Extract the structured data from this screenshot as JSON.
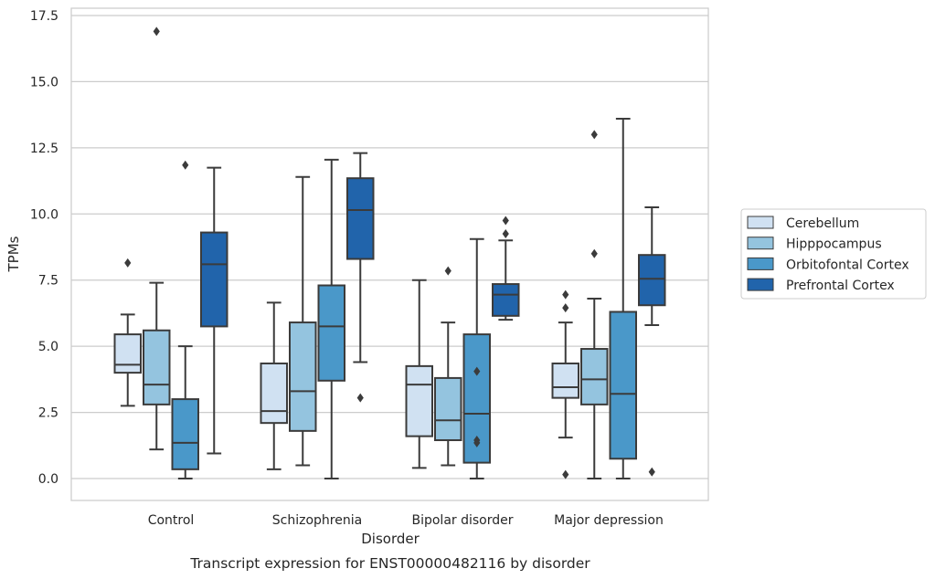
{
  "chart_data": {
    "type": "box",
    "xlabel": "Disorder",
    "ylabel": "TPMs",
    "caption": "Transcript expression for ENST00000482116 by disorder",
    "ylim": [
      -0.8,
      17.8
    ],
    "yticks": [
      "0.0",
      "2.5",
      "5.0",
      "7.5",
      "10.0",
      "12.5",
      "15.0",
      "17.5"
    ],
    "grid": "horizontal",
    "legend_position": "right",
    "categories": [
      "Control",
      "Schizophrenia",
      "Bipolar disorder",
      "Major depression"
    ],
    "series": [
      {
        "name": "Cerebellum",
        "color": "#d0e1f2",
        "boxes": [
          {
            "whislo": 2.75,
            "q1": 4.0,
            "med": 4.3,
            "q3": 5.45,
            "whishi": 6.2,
            "fliers": [
              8.15
            ]
          },
          {
            "whislo": 0.35,
            "q1": 2.1,
            "med": 2.55,
            "q3": 4.35,
            "whishi": 6.65,
            "fliers": []
          },
          {
            "whislo": 0.4,
            "q1": 1.6,
            "med": 3.55,
            "q3": 4.25,
            "whishi": 7.5,
            "fliers": []
          },
          {
            "whislo": 1.55,
            "q1": 3.05,
            "med": 3.45,
            "q3": 4.35,
            "whishi": 5.9,
            "fliers": [
              6.45,
              6.95,
              0.15
            ]
          }
        ]
      },
      {
        "name": "Hipppocampus",
        "color": "#94c4df",
        "boxes": [
          {
            "whislo": 1.1,
            "q1": 2.8,
            "med": 3.55,
            "q3": 5.6,
            "whishi": 7.4,
            "fliers": [
              16.9
            ]
          },
          {
            "whislo": 0.5,
            "q1": 1.8,
            "med": 3.3,
            "q3": 5.9,
            "whishi": 11.4,
            "fliers": []
          },
          {
            "whislo": 0.5,
            "q1": 1.45,
            "med": 2.2,
            "q3": 3.8,
            "whishi": 5.9,
            "fliers": [
              7.85
            ]
          },
          {
            "whislo": 0.0,
            "q1": 2.8,
            "med": 3.75,
            "q3": 4.9,
            "whishi": 6.8,
            "fliers": [
              8.5,
              13.0
            ]
          }
        ]
      },
      {
        "name": "Orbitofontal Cortex",
        "color": "#4a98c9",
        "boxes": [
          {
            "whislo": 0.0,
            "q1": 0.35,
            "med": 1.35,
            "q3": 3.0,
            "whishi": 5.0,
            "fliers": [
              11.85
            ]
          },
          {
            "whislo": 0.0,
            "q1": 3.7,
            "med": 5.75,
            "q3": 7.3,
            "whishi": 12.05,
            "fliers": []
          },
          {
            "whislo": 0.0,
            "q1": 0.6,
            "med": 2.45,
            "q3": 5.45,
            "whishi": 9.05,
            "fliers": [
              4.05,
              1.45,
              1.35
            ]
          },
          {
            "whislo": 0.0,
            "q1": 0.75,
            "med": 3.2,
            "q3": 6.3,
            "whishi": 13.6,
            "fliers": []
          }
        ]
      },
      {
        "name": "Prefrontal Cortex",
        "color": "#2164ab",
        "boxes": [
          {
            "whislo": 0.95,
            "q1": 5.75,
            "med": 8.1,
            "q3": 9.3,
            "whishi": 11.75,
            "fliers": []
          },
          {
            "whislo": 4.4,
            "q1": 8.3,
            "med": 10.15,
            "q3": 11.35,
            "whishi": 12.3,
            "fliers": [
              3.05
            ]
          },
          {
            "whislo": 6.0,
            "q1": 6.15,
            "med": 6.95,
            "q3": 7.35,
            "whishi": 9.0,
            "fliers": [
              9.25,
              9.75
            ]
          },
          {
            "whislo": 5.8,
            "q1": 6.55,
            "med": 7.55,
            "q3": 8.45,
            "whishi": 10.25,
            "fliers": [
              0.25
            ]
          }
        ]
      }
    ]
  }
}
